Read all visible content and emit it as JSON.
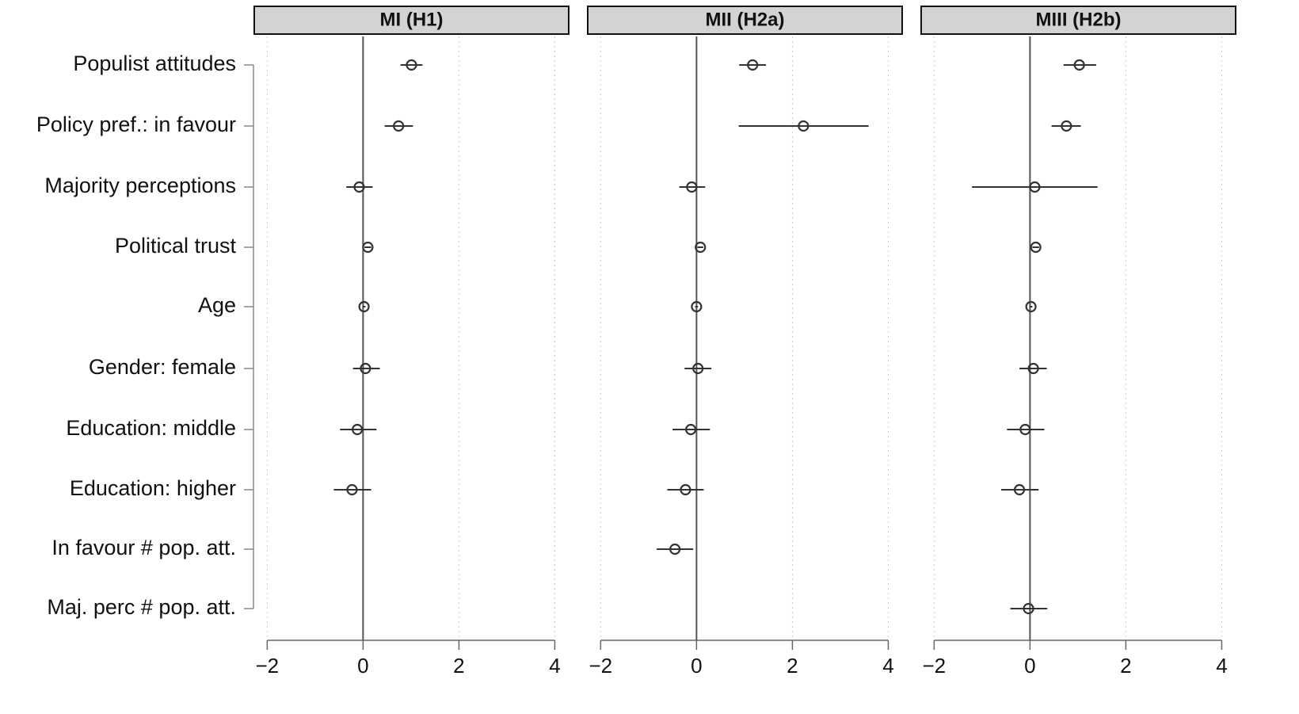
{
  "chart_data": {
    "type": "coefficient",
    "categories": [
      "Populist attitudes",
      "Policy pref.: in favour",
      "Majority perceptions",
      "Political trust",
      "Age",
      "Gender: female",
      "Education: middle",
      "Education: higher",
      "In favour # pop. att.",
      "Maj. perc # pop. att."
    ],
    "xlim": [
      -2.27,
      4.29
    ],
    "xticks": [
      {
        "value": -2,
        "label": "−2"
      },
      0,
      2,
      4
    ],
    "grid": true,
    "reference_line": 0,
    "color": "#333333",
    "panels": [
      {
        "title": "MI (H1)",
        "values": [
          1.01,
          0.74,
          -0.08,
          0.1,
          0.02,
          0.05,
          -0.12,
          -0.23,
          null,
          null
        ],
        "lower": [
          0.78,
          0.45,
          -0.35,
          0.03,
          -0.01,
          -0.21,
          -0.48,
          -0.61,
          null,
          null
        ],
        "upper": [
          1.24,
          1.04,
          0.2,
          0.17,
          0.05,
          0.35,
          0.28,
          0.17,
          null,
          null
        ]
      },
      {
        "title": "MII (H2a)",
        "values": [
          1.17,
          2.23,
          -0.1,
          0.08,
          0.0,
          0.03,
          -0.12,
          -0.23,
          -0.45,
          null
        ],
        "lower": [
          0.89,
          0.88,
          -0.36,
          0.02,
          -0.03,
          -0.25,
          -0.5,
          -0.61,
          -0.83,
          null
        ],
        "upper": [
          1.45,
          3.59,
          0.18,
          0.14,
          0.03,
          0.31,
          0.28,
          0.15,
          -0.07,
          null
        ]
      },
      {
        "title": "MIII (H2b)",
        "values": [
          1.03,
          0.76,
          0.1,
          0.12,
          0.02,
          0.07,
          -0.1,
          -0.22,
          null,
          -0.03
        ],
        "lower": [
          0.7,
          0.45,
          -1.21,
          0.05,
          -0.01,
          -0.22,
          -0.48,
          -0.6,
          null,
          -0.41
        ],
        "upper": [
          1.38,
          1.06,
          1.41,
          0.19,
          0.05,
          0.35,
          0.3,
          0.18,
          null,
          0.36
        ]
      }
    ]
  }
}
